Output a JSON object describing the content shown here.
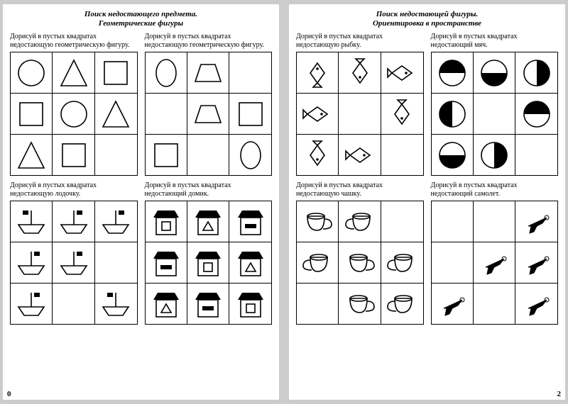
{
  "pages": [
    {
      "title_line1": "Поиск недостающего предмета.",
      "title_line2": "Геометрические фигуры",
      "pagenum": "0",
      "pagenum_side": "left",
      "tasks": [
        {
          "prompt": "Дорисуй в пустых квадратах недостающую геометрическую фигуру.",
          "cells": [
            [
              "circle",
              "triangle",
              "square"
            ],
            [
              "square",
              "circle",
              "triangle"
            ],
            [
              "triangle",
              "square",
              ""
            ]
          ]
        },
        {
          "prompt": "Дорисуй в пустых квадратах недостающую геометрическую фигуру.",
          "cells": [
            [
              "oval",
              "trapezoid",
              ""
            ],
            [
              "",
              "trapezoid",
              "square"
            ],
            [
              "square",
              "",
              "oval"
            ]
          ]
        },
        {
          "prompt": "Дорисуй в пустых квадратах недостающую лодочку.",
          "cells": [
            [
              "boat-flagL",
              "boat-flagR",
              "boat-flagR"
            ],
            [
              "boat-flagR",
              "boat-flagR",
              ""
            ],
            [
              "boat-flagR",
              "",
              "boat-flagL"
            ]
          ]
        },
        {
          "prompt": "Дорисуй в пустых квадратах недостающий домик.",
          "cells": [
            [
              "house-sq",
              "house-tri",
              "house-bar"
            ],
            [
              "house-bar",
              "house-sq",
              "house-tri"
            ],
            [
              "house-tri",
              "house-bar",
              "house-sq"
            ]
          ]
        }
      ]
    },
    {
      "title_line1": "Поиск недостающей фигуры.",
      "title_line2": "Ориентировка в пространстве",
      "pagenum": "2",
      "pagenum_side": "right",
      "tasks": [
        {
          "prompt": "Дорисуй в пустых квадратах недостающую рыбку.",
          "cells": [
            [
              "fish-up",
              "fish-down",
              "fish-right"
            ],
            [
              "fish-right",
              "",
              "fish-down"
            ],
            [
              "fish-down",
              "fish-right",
              ""
            ]
          ]
        },
        {
          "prompt": "Дорисуй в пустых квадратах недостающий мяч.",
          "cells": [
            [
              "half-top",
              "half-bottom",
              "half-right"
            ],
            [
              "half-left",
              "",
              "half-top"
            ],
            [
              "half-bottom",
              "half-right",
              ""
            ]
          ]
        },
        {
          "prompt": "Дорисуй в пустых квадратах недостающую чашку.",
          "cells": [
            [
              "cup-right",
              "cup-left",
              ""
            ],
            [
              "cup-left",
              "cup-right",
              "cup-left"
            ],
            [
              "",
              "cup-right",
              "cup-left"
            ]
          ]
        },
        {
          "prompt": "Дорисуй в пустых квадратах недостающий самолет.",
          "cells": [
            [
              "",
              "",
              "plane"
            ],
            [
              "",
              "plane",
              "plane"
            ],
            [
              "plane",
              "",
              "plane"
            ]
          ]
        }
      ]
    }
  ],
  "style": {
    "stroke": "#000",
    "stroke_width": 1.6,
    "cell_icon_size": 44
  }
}
